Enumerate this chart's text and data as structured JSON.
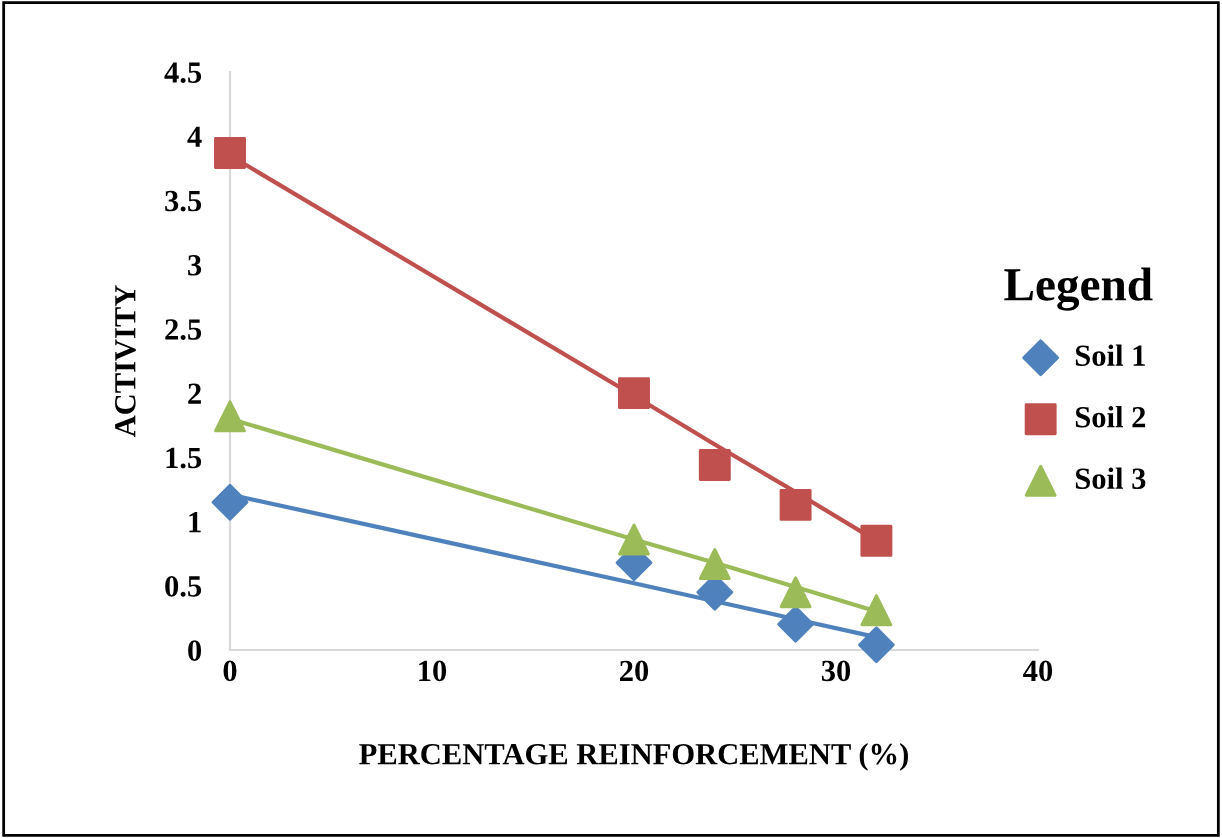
{
  "chart_data": {
    "type": "scatter",
    "xlabel": "PERCENTAGE REINFORCEMENT (%)",
    "ylabel": "ACTIVITY",
    "legend_title": "Legend",
    "legend": "right",
    "grid": false,
    "x": [
      0,
      20,
      24,
      28,
      32
    ],
    "xlim": [
      0,
      40
    ],
    "xticks": [
      0,
      10,
      20,
      30,
      40
    ],
    "ylim": [
      0,
      4.5
    ],
    "yticks": [
      0,
      0.5,
      1,
      1.5,
      2,
      2.5,
      3,
      3.5,
      4,
      4.5
    ],
    "series": [
      {
        "name": "Soil 1",
        "color": "#4f81bd",
        "marker": "diamond",
        "values": [
          1.15,
          0.68,
          0.45,
          0.2,
          0.04
        ]
      },
      {
        "name": "Soil 2",
        "color": "#c0504d",
        "marker": "square",
        "values": [
          3.87,
          2.0,
          1.44,
          1.13,
          0.85
        ]
      },
      {
        "name": "Soil 3",
        "color": "#9bbb59",
        "marker": "triangle",
        "values": [
          1.82,
          0.86,
          0.67,
          0.45,
          0.31
        ]
      },
      {
        "type": "line",
        "color": "#4f81bd",
        "values": [
          1.21,
          0.52,
          0.38,
          0.24,
          0.1
        ]
      },
      {
        "type": "line",
        "color": "#c0504d",
        "values": [
          3.85,
          1.98,
          1.6,
          1.23,
          0.85
        ]
      },
      {
        "type": "line",
        "color": "#9bbb59",
        "values": [
          1.8,
          0.86,
          0.68,
          0.49,
          0.3
        ]
      }
    ]
  }
}
